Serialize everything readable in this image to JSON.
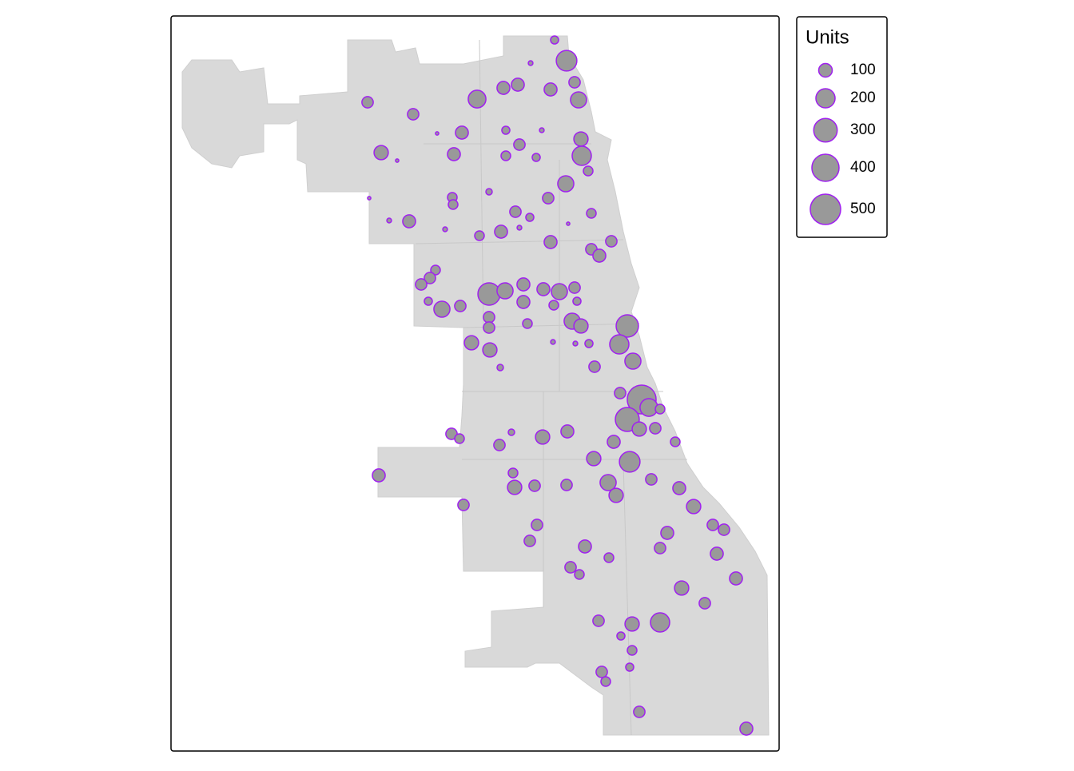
{
  "map": {
    "legend": {
      "title": "Units",
      "values": [
        100,
        200,
        300,
        400,
        500
      ]
    },
    "bubble_fill": "#999999",
    "bubble_stroke": "#a020f0",
    "bubbles": {
      "units": [
        35,
        230,
        12,
        70,
        70,
        170,
        90,
        90,
        90,
        70,
        140,
        90,
        35,
        110,
        90,
        70,
        50,
        35,
        110,
        200,
        50,
        140,
        70,
        50,
        50,
        22,
        90,
        70,
        50,
        35,
        50,
        90,
        90,
        70,
        70,
        90,
        50,
        70,
        70,
        90,
        270,
        140,
        90,
        140,
        70,
        140,
        70,
        35,
        70,
        90,
        50,
        35,
        140,
        110,
        270,
        200,
        70,
        50,
        110,
        110,
        35,
        140,
        70,
        22,
        70,
        450,
        310,
        170,
        50,
        110,
        70,
        50,
        70,
        22,
        110,
        90,
        90,
        70,
        50,
        110,
        230,
        90,
        50,
        110,
        70,
        70,
        140,
        110,
        70,
        90,
        110,
        70,
        70,
        70,
        90,
        50,
        90,
        70,
        70,
        70,
        90,
        70,
        50,
        90,
        110,
        70,
        70,
        110,
        200,
        35,
        50,
        35,
        70,
        50,
        70,
        90,
        6,
        6,
        6,
        12,
        12,
        12,
        6,
        12,
        12,
        12
      ]
    }
  }
}
